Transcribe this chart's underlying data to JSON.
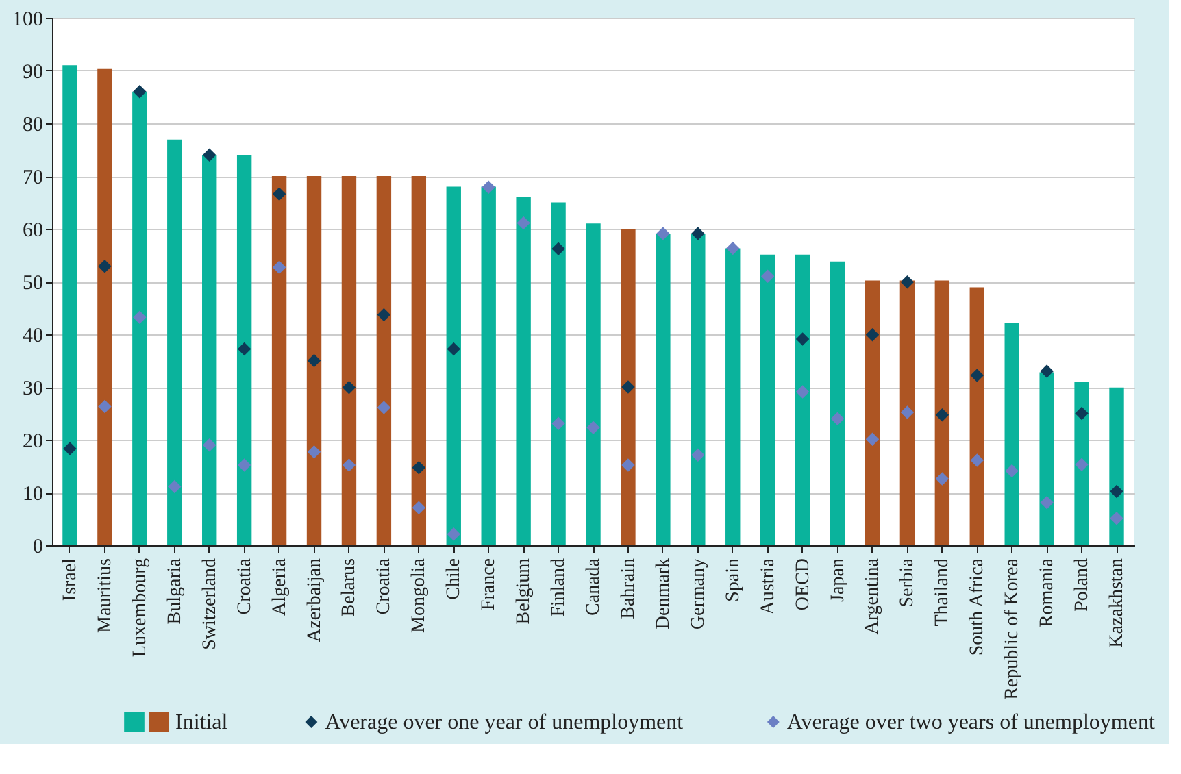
{
  "chart_data": {
    "type": "bar",
    "categories": [
      "Israel",
      "Mauritius",
      "Luxembourg",
      "Bulgaria",
      "Switzerland",
      "Croatia",
      "Algeria",
      "Azerbaijan",
      "Belarus",
      "Croatia",
      "Mongolia",
      "Chile",
      "France",
      "Belgium",
      "Finland",
      "Canada",
      "Bahrain",
      "Denmark",
      "Germany",
      "Spain",
      "Austria",
      "OECD",
      "Japan",
      "Argentina",
      "Serbia",
      "Thailand",
      "South Africa",
      "Republic of Korea",
      "Romania",
      "Poland",
      "Kazakhstan"
    ],
    "series": [
      {
        "name": "Initial",
        "colors": [
          "#0ab39c",
          "#ad5523",
          "#0ab39c",
          "#0ab39c",
          "#0ab39c",
          "#0ab39c",
          "#ad5523",
          "#ad5523",
          "#ad5523",
          "#ad5523",
          "#ad5523",
          "#0ab39c",
          "#0ab39c",
          "#0ab39c",
          "#0ab39c",
          "#0ab39c",
          "#ad5523",
          "#0ab39c",
          "#0ab39c",
          "#0ab39c",
          "#0ab39c",
          "#0ab39c",
          "#0ab39c",
          "#ad5523",
          "#ad5523",
          "#ad5523",
          "#ad5523",
          "#0ab39c",
          "#0ab39c",
          "#0ab39c",
          "#0ab39c"
        ],
        "values": [
          91.0,
          90.3,
          86.0,
          76.9,
          74.0,
          74.0,
          70.0,
          70.0,
          70.0,
          70.0,
          70.0,
          68.0,
          68.0,
          66.1,
          65.0,
          61.0,
          60.0,
          59.1,
          59.1,
          56.3,
          55.1,
          55.1,
          53.8,
          50.2,
          50.2,
          50.2,
          48.9,
          42.2,
          32.8,
          30.9,
          29.9
        ]
      },
      {
        "name": "Average over one year of unemployment",
        "type": "scatter",
        "color": "#0e3a57",
        "values": [
          18.3,
          52.9,
          86.0,
          null,
          74.0,
          37.2,
          66.6,
          35.0,
          29.9,
          43.7,
          14.7,
          37.2,
          null,
          null,
          56.2,
          null,
          30.0,
          null,
          59.1,
          null,
          null,
          39.1,
          null,
          39.9,
          49.9,
          24.7,
          32.2,
          null,
          33.0,
          25.0,
          10.2
        ]
      },
      {
        "name": "Average over two years of unemployment",
        "type": "scatter",
        "color": "#6b7fc4",
        "values": [
          null,
          26.3,
          43.2,
          11.1,
          19.0,
          15.2,
          52.7,
          17.7,
          15.2,
          26.1,
          7.1,
          2.1,
          67.9,
          61.1,
          23.1,
          22.3,
          15.2,
          59.1,
          17.1,
          56.3,
          51.0,
          29.1,
          24.0,
          20.1,
          25.2,
          12.6,
          16.1,
          14.1,
          8.1,
          15.3,
          5.1
        ]
      }
    ],
    "ylim": [
      0,
      100
    ],
    "yticks": [
      0,
      10,
      20,
      30,
      40,
      50,
      60,
      70,
      80,
      90,
      100
    ],
    "grid": "y",
    "legend": "bottom",
    "marker": "diamond"
  }
}
